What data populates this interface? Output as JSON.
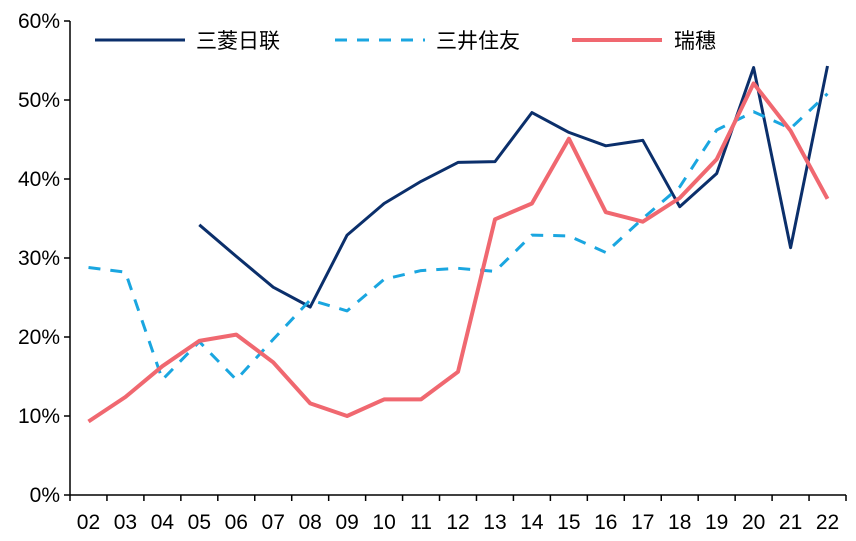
{
  "chart_data": {
    "type": "line",
    "title": "",
    "xlabel": "",
    "ylabel": "",
    "categories": [
      "02",
      "03",
      "04",
      "05",
      "06",
      "07",
      "08",
      "09",
      "10",
      "11",
      "12",
      "13",
      "14",
      "15",
      "16",
      "17",
      "18",
      "19",
      "20",
      "21",
      "22"
    ],
    "ylim": [
      0,
      60
    ],
    "y_ticks": [
      0,
      10,
      20,
      30,
      40,
      50,
      60
    ],
    "y_tick_labels": [
      "0%",
      "10%",
      "20%",
      "30%",
      "40%",
      "50%",
      "60%"
    ],
    "grid": false,
    "legend_position": "top",
    "series": [
      {
        "name": "三菱日联",
        "color": "#0b2f6b",
        "style": "solid",
        "values": [
          null,
          null,
          null,
          34.2,
          30.2,
          26.3,
          23.8,
          32.9,
          36.9,
          39.7,
          42.1,
          42.2,
          48.4,
          45.9,
          44.2,
          44.9,
          36.5,
          40.7,
          54.1,
          31.3,
          54.3
        ]
      },
      {
        "name": "三井住友",
        "color": "#1aa6e0",
        "style": "dashed",
        "values": [
          28.8,
          28.2,
          14.6,
          19.4,
          14.6,
          19.7,
          24.7,
          23.3,
          27.3,
          28.4,
          28.7,
          28.3,
          32.9,
          32.8,
          30.7,
          35.0,
          39.0,
          46.2,
          48.5,
          46.4,
          50.8
        ]
      },
      {
        "name": "瑞穗",
        "color": "#f06870",
        "style": "solid",
        "values": [
          9.3,
          12.4,
          16.3,
          19.5,
          20.3,
          16.8,
          11.6,
          10.0,
          12.1,
          12.1,
          15.6,
          34.9,
          36.9,
          45.1,
          35.8,
          34.6,
          37.6,
          42.5,
          52.1,
          46.1,
          37.5
        ]
      }
    ]
  }
}
